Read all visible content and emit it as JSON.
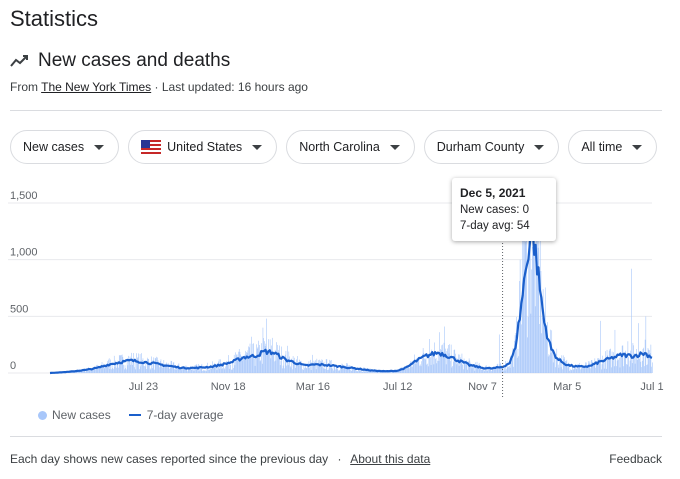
{
  "page": {
    "heading": "Statistics",
    "card_title": "New cases and deaths",
    "source_prefix": "From",
    "source_name": "The New York Times",
    "source_suffix": "· Last updated: 16 hours ago",
    "trend_icon": "trending-up-icon",
    "flag_icon": "us-flag-icon"
  },
  "filters": [
    {
      "label": "New cases"
    },
    {
      "label": "United States"
    },
    {
      "label": "North Carolina"
    },
    {
      "label": "Durham County"
    },
    {
      "label": "All time"
    }
  ],
  "tooltip": {
    "date": "Dec 5, 2021",
    "cases": "New cases: 0",
    "avg": "7-day avg: 54"
  },
  "legend": {
    "bars": "New cases",
    "line": "7-day average"
  },
  "footer": {
    "note": "Each day shows new cases reported since the previous day",
    "separator": "·",
    "link": "About this data",
    "feedback": "Feedback"
  },
  "colors": {
    "bar": "#a8c7fa",
    "line": "#1a5fcb",
    "grid": "#e8eaed",
    "text": "#5f6368"
  },
  "chart_data": {
    "type": "bar",
    "ylim": [
      0,
      1500
    ],
    "yticks": [
      0,
      500,
      1000,
      1500
    ],
    "ytick_labels": [
      "0",
      "500",
      "1,000",
      "1,500"
    ],
    "xticks": [
      {
        "label": "Jul 23",
        "date": "2020-07-23"
      },
      {
        "label": "Nov 18",
        "date": "2020-11-18"
      },
      {
        "label": "Mar 16",
        "date": "2021-03-16"
      },
      {
        "label": "Jul 12",
        "date": "2021-07-12"
      },
      {
        "label": "Nov 7",
        "date": "2021-11-07"
      },
      {
        "label": "Mar 5",
        "date": "2022-03-05"
      },
      {
        "label": "Jul 1",
        "date": "2022-07-01"
      }
    ],
    "x_start": "2020-03-15",
    "x_end": "2022-07-01",
    "hover_date": "2021-12-05",
    "series": [
      {
        "name": "7-day average",
        "points": [
          [
            "2020-03-15",
            0
          ],
          [
            "2020-04-10",
            10
          ],
          [
            "2020-05-05",
            28
          ],
          [
            "2020-05-20",
            45
          ],
          [
            "2020-06-05",
            75
          ],
          [
            "2020-06-20",
            95
          ],
          [
            "2020-07-05",
            110
          ],
          [
            "2020-07-20",
            100
          ],
          [
            "2020-08-05",
            85
          ],
          [
            "2020-08-25",
            65
          ],
          [
            "2020-09-15",
            45
          ],
          [
            "2020-10-05",
            45
          ],
          [
            "2020-10-25",
            55
          ],
          [
            "2020-11-10",
            75
          ],
          [
            "2020-11-25",
            100
          ],
          [
            "2020-12-10",
            140
          ],
          [
            "2020-12-25",
            150
          ],
          [
            "2021-01-08",
            190
          ],
          [
            "2021-01-20",
            180
          ],
          [
            "2021-02-05",
            120
          ],
          [
            "2021-02-20",
            90
          ],
          [
            "2021-03-05",
            65
          ],
          [
            "2021-03-20",
            75
          ],
          [
            "2021-04-05",
            70
          ],
          [
            "2021-04-25",
            55
          ],
          [
            "2021-05-15",
            40
          ],
          [
            "2021-06-05",
            22
          ],
          [
            "2021-06-25",
            15
          ],
          [
            "2021-07-12",
            20
          ],
          [
            "2021-07-25",
            50
          ],
          [
            "2021-08-05",
            100
          ],
          [
            "2021-08-20",
            150
          ],
          [
            "2021-09-05",
            180
          ],
          [
            "2021-09-15",
            165
          ],
          [
            "2021-10-01",
            120
          ],
          [
            "2021-10-20",
            70
          ],
          [
            "2021-11-07",
            45
          ],
          [
            "2021-11-20",
            40
          ],
          [
            "2021-12-05",
            54
          ],
          [
            "2021-12-15",
            90
          ],
          [
            "2021-12-22",
            200
          ],
          [
            "2021-12-29",
            500
          ],
          [
            "2022-01-05",
            850
          ],
          [
            "2022-01-10",
            1100
          ],
          [
            "2022-01-14",
            1250
          ],
          [
            "2022-01-18",
            1150
          ],
          [
            "2022-01-25",
            800
          ],
          [
            "2022-02-01",
            450
          ],
          [
            "2022-02-10",
            220
          ],
          [
            "2022-02-20",
            120
          ],
          [
            "2022-03-05",
            70
          ],
          [
            "2022-03-20",
            55
          ],
          [
            "2022-04-05",
            60
          ],
          [
            "2022-04-20",
            100
          ],
          [
            "2022-05-05",
            130
          ],
          [
            "2022-05-20",
            160
          ],
          [
            "2022-06-05",
            150
          ],
          [
            "2022-06-20",
            175
          ],
          [
            "2022-07-01",
            140
          ]
        ]
      }
    ],
    "bar_spikes": [
      [
        "2020-06-05",
        130
      ],
      [
        "2020-07-15",
        140
      ],
      [
        "2020-11-26",
        160
      ],
      [
        "2020-12-20",
        320
      ],
      [
        "2021-01-05",
        400
      ],
      [
        "2021-01-10",
        480
      ],
      [
        "2021-01-18",
        310
      ],
      [
        "2021-02-08",
        240
      ],
      [
        "2021-03-15",
        160
      ],
      [
        "2021-08-25",
        300
      ],
      [
        "2021-09-08",
        360
      ],
      [
        "2021-09-15",
        410
      ],
      [
        "2021-11-30",
        340
      ],
      [
        "2021-12-29",
        1000
      ],
      [
        "2022-01-01",
        1350
      ],
      [
        "2022-01-04",
        1550
      ],
      [
        "2022-01-07",
        1500
      ],
      [
        "2022-01-12",
        1580
      ],
      [
        "2022-01-20",
        1450
      ],
      [
        "2022-01-27",
        900
      ],
      [
        "2022-04-20",
        460
      ],
      [
        "2022-05-10",
        380
      ],
      [
        "2022-05-28",
        280
      ],
      [
        "2022-06-02",
        920
      ],
      [
        "2022-06-12",
        440
      ],
      [
        "2022-06-22",
        500
      ]
    ]
  }
}
